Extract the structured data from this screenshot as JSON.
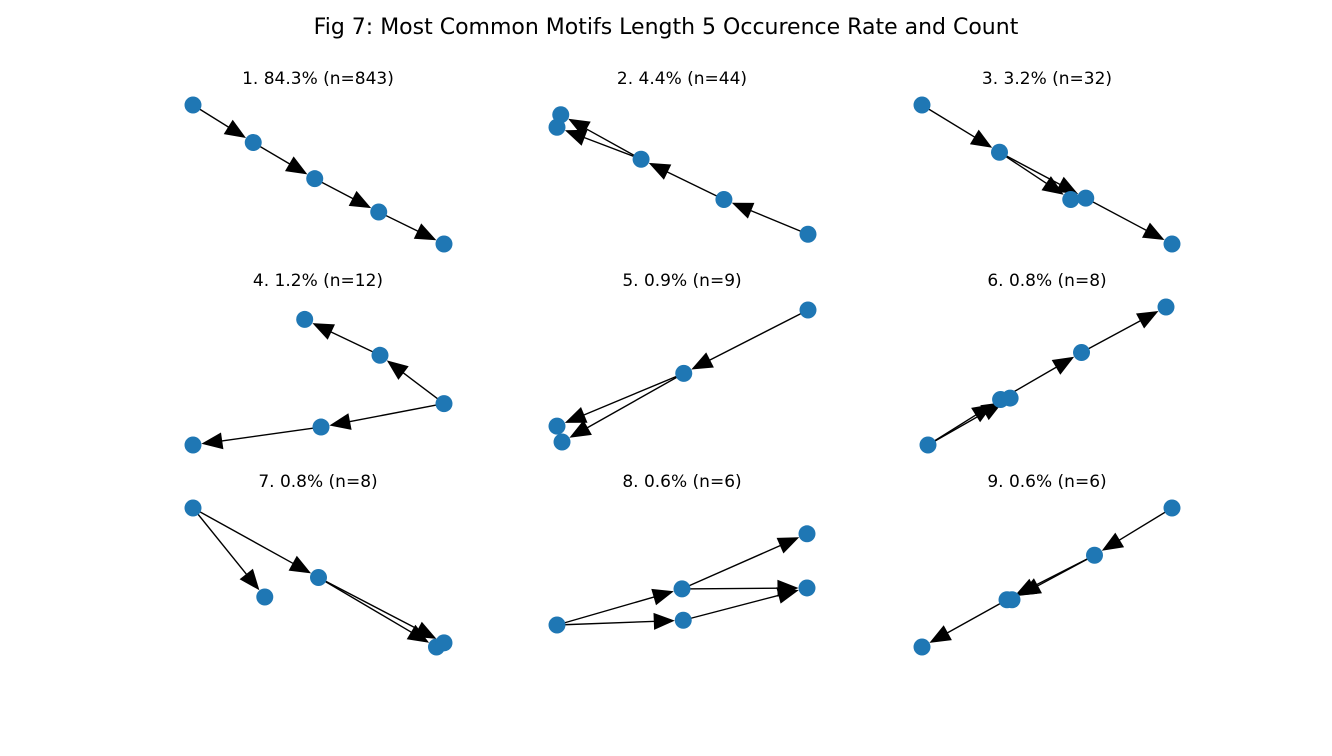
{
  "figure": {
    "title": "Fig 7: Most Common Motifs Length 5 Occurence Rate and Count"
  },
  "colors": {
    "node": "#1f77b4",
    "edge": "#000000",
    "background": "#ffffff"
  },
  "panels": [
    {
      "title": "1. 84.3% (n=843)",
      "nodes": [
        [
          0.0,
          1.0
        ],
        [
          0.24,
          0.73
        ],
        [
          0.485,
          0.47
        ],
        [
          0.74,
          0.23
        ],
        [
          1.0,
          0.0
        ]
      ],
      "edges": [
        [
          0,
          1
        ],
        [
          1,
          2
        ],
        [
          2,
          3
        ],
        [
          3,
          4
        ]
      ]
    },
    {
      "title": "2. 4.4% (n=44)",
      "nodes": [
        [
          1.0,
          0.07
        ],
        [
          0.665,
          0.32
        ],
        [
          0.335,
          0.61
        ],
        [
          0.015,
          0.93
        ],
        [
          0.0,
          0.84
        ]
      ],
      "edges": [
        [
          0,
          1
        ],
        [
          1,
          2
        ],
        [
          2,
          3
        ],
        [
          2,
          4
        ]
      ]
    },
    {
      "title": "3. 3.2% (n=32)",
      "nodes": [
        [
          0.0,
          1.0
        ],
        [
          0.31,
          0.66
        ],
        [
          0.595,
          0.32
        ],
        [
          0.655,
          0.33
        ],
        [
          1.0,
          0.0
        ]
      ],
      "edges": [
        [
          0,
          1
        ],
        [
          1,
          2
        ],
        [
          1,
          3
        ],
        [
          3,
          4
        ]
      ]
    },
    {
      "title": "4. 1.2% (n=12)",
      "nodes": [
        [
          1.0,
          0.3
        ],
        [
          0.745,
          0.65
        ],
        [
          0.445,
          0.91
        ],
        [
          0.51,
          0.13
        ],
        [
          0.0,
          0.0
        ]
      ],
      "edges": [
        [
          0,
          1
        ],
        [
          1,
          2
        ],
        [
          0,
          3
        ],
        [
          3,
          4
        ]
      ]
    },
    {
      "title": "5. 0.9% (n=9)",
      "nodes": [
        [
          1.0,
          1.0
        ],
        [
          0.505,
          0.52
        ],
        [
          0.0,
          0.12
        ],
        [
          0.02,
          0.0
        ]
      ],
      "edges": [
        [
          0,
          1
        ],
        [
          1,
          2
        ],
        [
          1,
          3
        ]
      ]
    },
    {
      "title": "6. 0.8% (n=8)",
      "nodes": [
        [
          0.0,
          0.0
        ],
        [
          0.305,
          0.33
        ],
        [
          0.345,
          0.34
        ],
        [
          0.645,
          0.67
        ],
        [
          1.0,
          1.0
        ]
      ],
      "edges": [
        [
          0,
          1
        ],
        [
          0,
          2
        ],
        [
          1,
          3
        ],
        [
          3,
          4
        ]
      ]
    },
    {
      "title": "7. 0.8% (n=8)",
      "nodes": [
        [
          0.0,
          1.0
        ],
        [
          0.286,
          0.36
        ],
        [
          0.5,
          0.5
        ],
        [
          0.97,
          0.0
        ],
        [
          1.0,
          0.03
        ]
      ],
      "edges": [
        [
          0,
          1
        ],
        [
          0,
          2
        ],
        [
          2,
          3
        ],
        [
          2,
          4
        ]
      ]
    },
    {
      "title": "8. 0.6% (n=6)",
      "nodes": [
        [
          0.0,
          0.0
        ],
        [
          0.5,
          0.38
        ],
        [
          0.505,
          0.05
        ],
        [
          1.0,
          0.96
        ],
        [
          1.0,
          0.39
        ]
      ],
      "edges": [
        [
          0,
          1
        ],
        [
          0,
          2
        ],
        [
          1,
          3
        ],
        [
          1,
          4
        ],
        [
          2,
          4
        ]
      ]
    },
    {
      "title": "9. 0.6% (n=6)",
      "nodes": [
        [
          1.0,
          1.0
        ],
        [
          0.69,
          0.66
        ],
        [
          0.34,
          0.34
        ],
        [
          0.36,
          0.34
        ],
        [
          0.0,
          0.0
        ]
      ],
      "edges": [
        [
          0,
          1
        ],
        [
          1,
          2
        ],
        [
          1,
          3
        ],
        [
          2,
          4
        ]
      ]
    }
  ]
}
